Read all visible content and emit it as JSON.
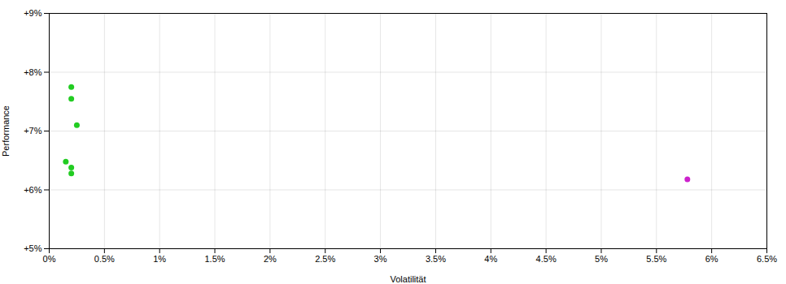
{
  "chart_data": {
    "type": "scatter",
    "xlabel": "Volatilität",
    "ylabel": "Performance",
    "xlim": [
      0.0,
      0.065
    ],
    "ylim": [
      0.05,
      0.09
    ],
    "xticks": [
      {
        "value": 0.0,
        "label": "0%"
      },
      {
        "value": 0.005,
        "label": "0.5%"
      },
      {
        "value": 0.01,
        "label": "1%"
      },
      {
        "value": 0.015,
        "label": "1.5%"
      },
      {
        "value": 0.02,
        "label": "2%"
      },
      {
        "value": 0.025,
        "label": "2.5%"
      },
      {
        "value": 0.03,
        "label": "3%"
      },
      {
        "value": 0.035,
        "label": "3.5%"
      },
      {
        "value": 0.04,
        "label": "4%"
      },
      {
        "value": 0.045,
        "label": "4.5%"
      },
      {
        "value": 0.05,
        "label": "5%"
      },
      {
        "value": 0.055,
        "label": "5.5%"
      },
      {
        "value": 0.06,
        "label": "6%"
      },
      {
        "value": 0.065,
        "label": "6.5%"
      }
    ],
    "yticks": [
      {
        "value": 0.05,
        "label": "+5%"
      },
      {
        "value": 0.06,
        "label": "+6%"
      },
      {
        "value": 0.07,
        "label": "+7%"
      },
      {
        "value": 0.08,
        "label": "+8%"
      },
      {
        "value": 0.09,
        "label": "+9%"
      }
    ],
    "grid": true,
    "series": [
      {
        "color": "#22cc22",
        "x": [
          0.002,
          0.002,
          0.0025,
          0.0015,
          0.002,
          0.002
        ],
        "values": [
          0.0775,
          0.0755,
          0.071,
          0.0648,
          0.0638,
          0.0628
        ]
      },
      {
        "color": "#cc22cc",
        "x": [
          0.0578
        ],
        "values": [
          0.0618
        ]
      }
    ]
  }
}
